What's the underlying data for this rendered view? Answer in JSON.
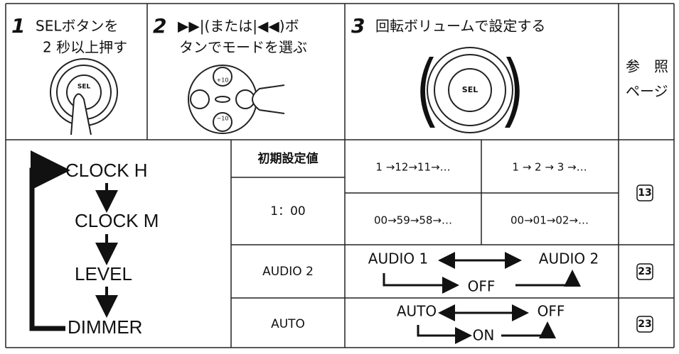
{
  "steps": [
    {
      "number": "1",
      "lines": [
        "SELボタンを",
        "2 秒以上押す"
      ],
      "knob_labels": [
        "SEL"
      ]
    },
    {
      "number": "2",
      "lines": [
        "▶▶|(または|◀◀)ボ",
        "タンでモードを選ぶ"
      ],
      "knob_labels": [
        "+10",
        "−10"
      ]
    },
    {
      "number": "3",
      "lines": [
        "回転ボリュームで設定する"
      ],
      "knob_labels": [
        "SEL"
      ]
    }
  ],
  "reference_header": [
    "参　照",
    "ページ"
  ],
  "modes": [
    "CLOCK H",
    "CLOCK M",
    "LEVEL",
    "DIMMER"
  ],
  "initial_header": "初期設定値",
  "clock": {
    "initial": "1：00",
    "sequences": [
      [
        "1 →12→11→…",
        "1 → 2 → 3 →…"
      ],
      [
        "00→59→58→…",
        "00→01→02→…"
      ]
    ],
    "page": "13"
  },
  "level": {
    "initial": "AUDIO  2",
    "options": [
      "AUDIO 1",
      "AUDIO 2",
      "OFF"
    ],
    "page": "23"
  },
  "dimmer": {
    "initial": "AUTO",
    "options": [
      "AUTO",
      "OFF",
      "ON"
    ],
    "page": "23"
  }
}
